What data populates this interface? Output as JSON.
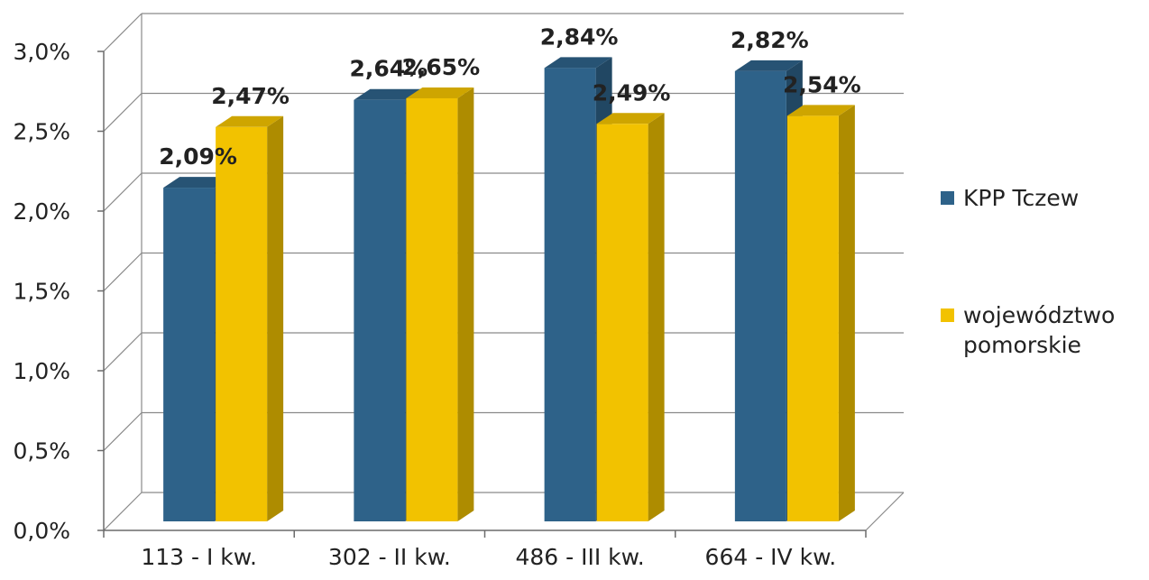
{
  "chart_data": {
    "type": "bar",
    "categories": [
      "113 - I kw.",
      "302 - II kw.",
      "486 - III kw.",
      "664 - IV kw."
    ],
    "series": [
      {
        "name": "KPP Tczew",
        "values": [
          2.09,
          2.64,
          2.84,
          2.82
        ],
        "labels": [
          "2,09%",
          "2,64%",
          "2,84%",
          "2,82%"
        ],
        "color": "#2e6289"
      },
      {
        "name": "województwo pomorskie",
        "legend_lines": [
          "województwo",
          "pomorskie"
        ],
        "values": [
          2.47,
          2.65,
          2.49,
          2.54
        ],
        "labels": [
          "2,47%",
          "2,65%",
          "2,49%",
          "2,54%"
        ],
        "color": "#f2c200"
      }
    ],
    "y_ticks": [
      "0,0%",
      "0,5%",
      "1,0%",
      "1,5%",
      "2,0%",
      "2,5%",
      "3,0%"
    ],
    "ylim": [
      0,
      3
    ],
    "grid": true,
    "legend_position": "right",
    "style": "3d-clustered-columns"
  }
}
